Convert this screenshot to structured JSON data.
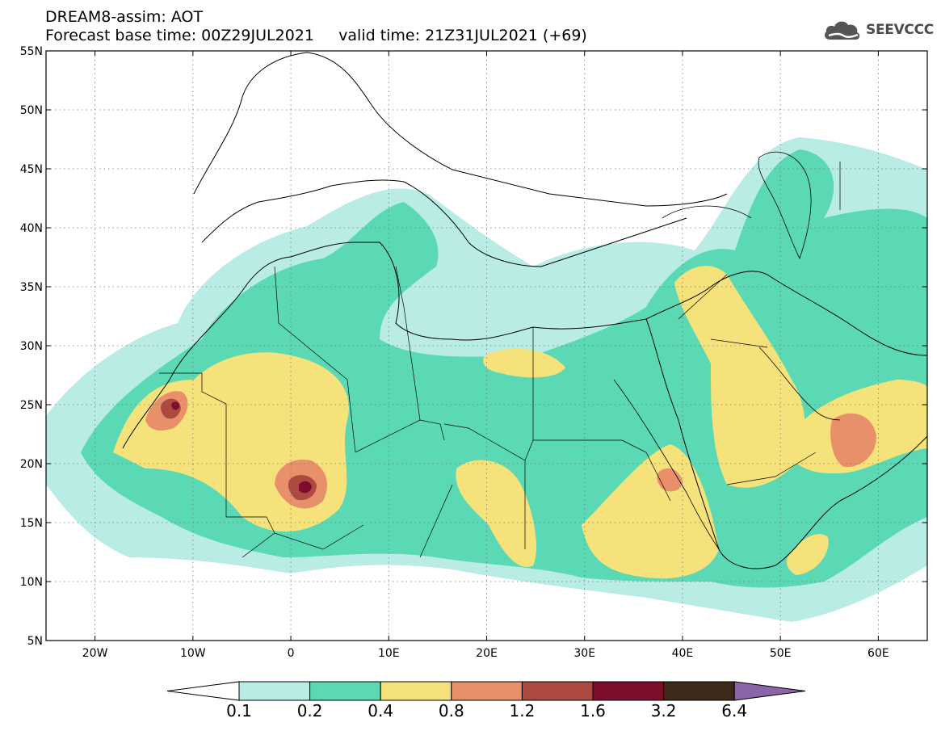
{
  "header": {
    "title_line1": "DREAM8-assim: AOT",
    "title_line2": "Forecast base time: 00Z29JUL2021     valid time: 21Z31JUL2021 (+69)"
  },
  "logo": {
    "text": "SEEVCCC",
    "icon": "cloud-icon",
    "color": "#4b4b4b"
  },
  "map": {
    "variable": "AOT",
    "lon_range": [
      -25,
      65
    ],
    "lat_range": [
      5,
      55
    ],
    "x_ticks": [
      "20W",
      "10W",
      "0",
      "10E",
      "20E",
      "30E",
      "40E",
      "50E",
      "60E"
    ],
    "y_ticks": [
      "55N",
      "50N",
      "45N",
      "40N",
      "35N",
      "30N",
      "25N",
      "20N",
      "15N",
      "10N",
      "5N"
    ],
    "grid": "dotted"
  },
  "colorbar": {
    "levels": [
      "0.1",
      "0.2",
      "0.4",
      "0.8",
      "1.2",
      "1.6",
      "3.2",
      "6.4"
    ],
    "colors": {
      "under": "#ffffff",
      "c1": "#b8ece4",
      "c2": "#5ad9b4",
      "c3": "#f5e27a",
      "c4": "#e8906a",
      "c5": "#ac4a40",
      "c6": "#7e0d2c",
      "c7": "#3d2a1a",
      "over": "#8a66a8"
    }
  }
}
